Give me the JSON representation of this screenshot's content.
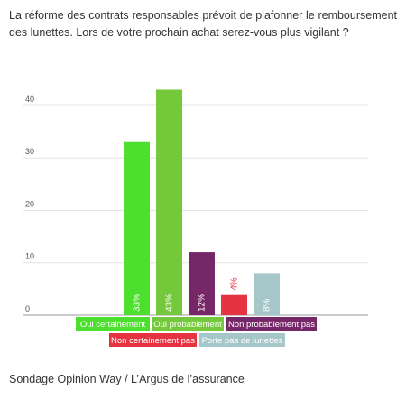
{
  "title": "La réforme des contrats responsables prévoit de plafonner le remboursement des lunettes. Lors de votre prochain achat serez-vous plus vigilant ?",
  "source": "Sondage Opinion Way / L’Argus de l’assurance",
  "chart_data": {
    "type": "bar",
    "title": "La réforme des contrats responsables prévoit de plafonner le remboursement des lunettes. Lors de votre prochain achat serez-vous plus vigilant ?",
    "xlabel": "",
    "ylabel": "",
    "ylim": [
      0,
      46
    ],
    "yticks": [
      0,
      10,
      20,
      30,
      40
    ],
    "grid": true,
    "legend": "bottom",
    "categories": [
      "Oui certainement",
      "Oui probablement",
      "Non probablement pas",
      "Non certainement pas",
      "Porte pas de lunettes"
    ],
    "values": [
      33,
      43,
      12,
      4,
      8
    ],
    "data_labels": [
      "33%",
      "43%",
      "12%",
      "4%",
      "8%"
    ],
    "colors": [
      "#4ddf2e",
      "#74c93a",
      "#762768",
      "#e63341",
      "#a5c7c9"
    ]
  }
}
